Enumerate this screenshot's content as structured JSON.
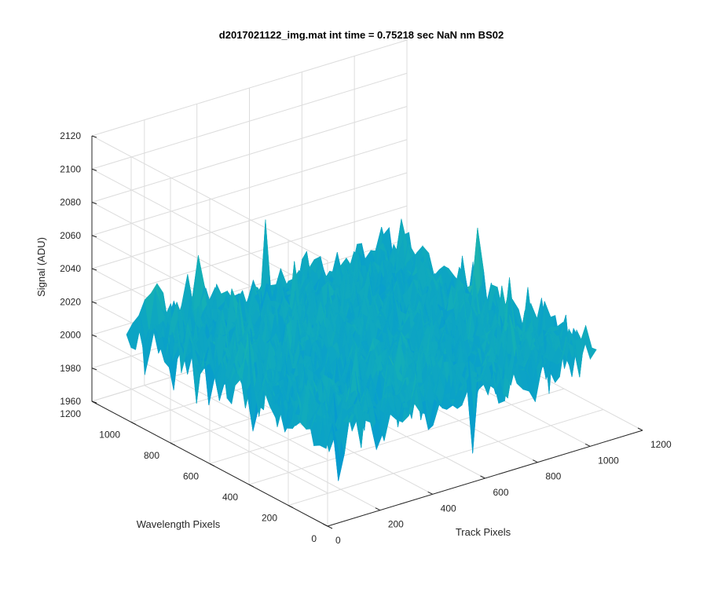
{
  "chart_data": {
    "type": "surface",
    "title": "d2017021122_img.mat int time = 0.75218 sec  NaN nm BS02",
    "xlabel": "Track Pixels",
    "ylabel": "Wavelength Pixels",
    "zlabel": "Signal (ADU)",
    "xlim": [
      0,
      1200
    ],
    "ylim": [
      0,
      1200
    ],
    "zlim": [
      1960,
      2120
    ],
    "x_ticks": [
      "0",
      "200",
      "400",
      "600",
      "800",
      "1000",
      "1200"
    ],
    "y_ticks": [
      "0",
      "200",
      "400",
      "600",
      "800",
      "1000",
      "1200"
    ],
    "z_ticks": [
      "1960",
      "1980",
      "2000",
      "2020",
      "2040",
      "2060",
      "2080",
      "2100",
      "2120"
    ],
    "data_extent": {
      "x": [
        0,
        1024
      ],
      "y": [
        0,
        1024
      ]
    },
    "signal_mean": 2015,
    "signal_range": [
      1965,
      2105
    ],
    "colormap": "parula",
    "grid": true,
    "box": "open"
  }
}
